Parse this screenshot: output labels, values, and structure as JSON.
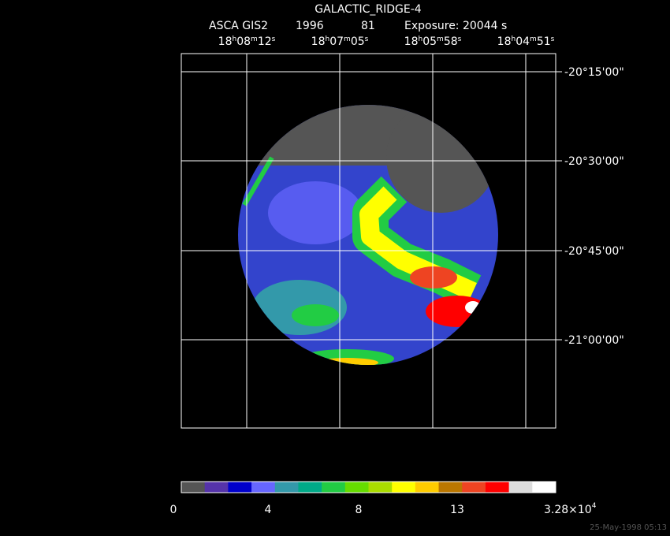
{
  "title": "GALACTIC_RIDGE-4",
  "info": {
    "instrument": "ASCA GIS2",
    "year": "1996",
    "sequence": "81",
    "exposure": "Exposure: 20044 s"
  },
  "ra_labels": [
    [
      "18",
      "h",
      "08",
      "m",
      "12",
      "s"
    ],
    [
      "18",
      "h",
      "07",
      "m",
      "05",
      "s"
    ],
    [
      "18",
      "h",
      "05",
      "m",
      "58",
      "s"
    ],
    [
      "18",
      "h",
      "04",
      "m",
      "51",
      "s"
    ]
  ],
  "dec_labels": [
    "-20°15'00\"",
    "-20°30'00\"",
    "-20°45'00\"",
    "-21°00'00\""
  ],
  "colorbar": {
    "colors": [
      "#555555",
      "#5533aa",
      "#0000cc",
      "#6666ff",
      "#3399aa",
      "#00aa88",
      "#22cc44",
      "#66dd00",
      "#aadd00",
      "#ffff00",
      "#ffcc00",
      "#bb7700",
      "#ee4422",
      "#ff0000",
      "#dddddd",
      "#ffffff"
    ],
    "labels": [
      "0",
      "4",
      "8",
      "13"
    ],
    "max_label": {
      "mantissa": "3.28×10",
      "exponent": "4"
    }
  },
  "timestamp": "25-May-1998 05:13"
}
